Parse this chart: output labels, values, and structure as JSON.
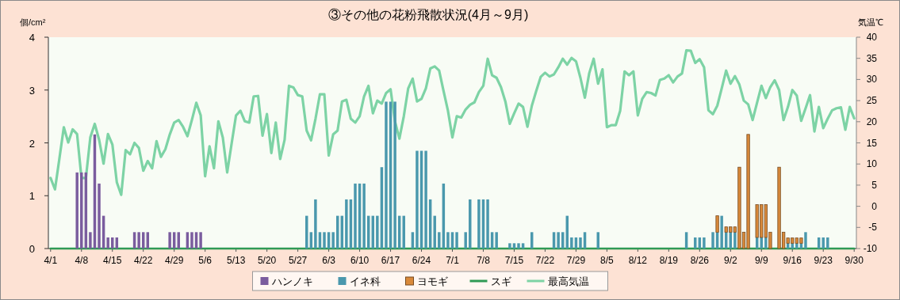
{
  "chart_data": {
    "type": "bar",
    "title": "③その他の花粉飛散状況(4月～9月)",
    "ylabel": "個/cm²",
    "y2label": "気温℃",
    "categories": [
      "4/1",
      null,
      null,
      null,
      null,
      null,
      null,
      "4/8",
      null,
      null,
      null,
      null,
      null,
      null,
      "4/15",
      null,
      null,
      null,
      null,
      null,
      null,
      "4/22",
      null,
      null,
      null,
      null,
      null,
      null,
      "4/29",
      null,
      null,
      null,
      null,
      null,
      null,
      "5/6",
      null,
      null,
      null,
      null,
      null,
      null,
      "5/13",
      null,
      null,
      null,
      null,
      null,
      null,
      "5/20",
      null,
      null,
      null,
      null,
      null,
      null,
      "5/27",
      null,
      null,
      null,
      null,
      null,
      null,
      "6/3",
      null,
      null,
      null,
      null,
      null,
      null,
      "6/10",
      null,
      null,
      null,
      null,
      null,
      null,
      "6/17",
      null,
      null,
      null,
      null,
      null,
      null,
      "6/24",
      null,
      null,
      null,
      null,
      null,
      null,
      "7/1",
      null,
      null,
      null,
      null,
      null,
      null,
      "7/8",
      null,
      null,
      null,
      null,
      null,
      null,
      "7/15",
      null,
      null,
      null,
      null,
      null,
      null,
      "7/22",
      null,
      null,
      null,
      null,
      null,
      null,
      "7/29",
      null,
      null,
      null,
      null,
      null,
      null,
      "8/5",
      null,
      null,
      null,
      null,
      null,
      null,
      "8/12",
      null,
      null,
      null,
      null,
      null,
      null,
      "8/19",
      null,
      null,
      null,
      null,
      null,
      null,
      "8/26",
      null,
      null,
      null,
      null,
      null,
      null,
      "9/2",
      null,
      null,
      null,
      null,
      null,
      null,
      "9/9",
      null,
      null,
      null,
      null,
      null,
      null,
      "9/16",
      null,
      null,
      null,
      null,
      null,
      null,
      "9/23",
      null,
      null,
      null,
      null,
      null,
      null,
      "9/30"
    ],
    "stacked": true,
    "legend": "bottom",
    "ylim": [
      0,
      4
    ],
    "yticks": [
      0,
      1,
      2,
      3,
      4
    ],
    "y2lim": [
      -10,
      40
    ],
    "y2ticks": [
      -10,
      -5,
      0,
      5,
      10,
      15,
      20,
      25,
      30,
      35,
      40
    ],
    "series": [
      {
        "name": "ハンノキ",
        "color": "#7a5c9e",
        "values": [
          0,
          0,
          0,
          0,
          0,
          0,
          1.44,
          1.44,
          1.44,
          0.31,
          2.16,
          1.23,
          0.62,
          0.21,
          0.21,
          0.21,
          0,
          0,
          0,
          0.31,
          0.31,
          0.31,
          0.31,
          0,
          0,
          0,
          0,
          0.31,
          0.31,
          0.31,
          0,
          0.31,
          0.31,
          0.31,
          0.31,
          0,
          0,
          0,
          0,
          0,
          0,
          0,
          0,
          0,
          0,
          0,
          0,
          0,
          0,
          0,
          0,
          0,
          0,
          0,
          0,
          0,
          0,
          0,
          0,
          0,
          0,
          0,
          0,
          0,
          0,
          0,
          0,
          0,
          0,
          0,
          0,
          0,
          0,
          0,
          0,
          0,
          0,
          0,
          0,
          0,
          0,
          0,
          0,
          0,
          0,
          0,
          0,
          0,
          0,
          0,
          0,
          0,
          0,
          0,
          0,
          0,
          0,
          0,
          0,
          0,
          0,
          0,
          0,
          0,
          0,
          0,
          0,
          0,
          0,
          0,
          0,
          0,
          0,
          0,
          0,
          0,
          0,
          0,
          0,
          0,
          0,
          0,
          0,
          0,
          0,
          0,
          0,
          0,
          0,
          0,
          0,
          0,
          0,
          0,
          0,
          0,
          0,
          0,
          0,
          0,
          0,
          0,
          0,
          0,
          0,
          0,
          0,
          0,
          0,
          0,
          0,
          0,
          0,
          0,
          0,
          0,
          0,
          0,
          0,
          0,
          0,
          0,
          0,
          0,
          0,
          0,
          0,
          0,
          0,
          0,
          0,
          0,
          0,
          0,
          0,
          0,
          0,
          0,
          0,
          0,
          0,
          0,
          0
        ]
      },
      {
        "name": "イネ科",
        "color": "#4a98ad",
        "values": [
          0,
          0,
          0,
          0,
          0,
          0,
          0,
          0,
          0,
          0,
          0,
          0,
          0,
          0,
          0,
          0,
          0,
          0,
          0,
          0,
          0,
          0,
          0,
          0,
          0,
          0,
          0,
          0,
          0,
          0,
          0,
          0,
          0,
          0,
          0,
          0,
          0,
          0,
          0,
          0,
          0,
          0,
          0,
          0,
          0,
          0,
          0,
          0,
          0,
          0,
          0,
          0,
          0,
          0,
          0,
          0,
          0,
          0,
          0.62,
          0.31,
          0.93,
          0.31,
          0.31,
          0.31,
          0.31,
          0.62,
          0.62,
          0.93,
          0.93,
          1.23,
          1.23,
          1.23,
          0.62,
          0.62,
          0.62,
          1.54,
          2.78,
          2.78,
          2.78,
          0.62,
          0.62,
          0,
          0.31,
          1.85,
          1.85,
          1.85,
          0.93,
          0.62,
          0.31,
          1.23,
          0.31,
          0.31,
          0.31,
          0,
          0.31,
          0.93,
          0,
          0.93,
          0.93,
          0.93,
          0.31,
          0.31,
          0,
          0,
          0.1,
          0.1,
          0.1,
          0.1,
          0,
          0.31,
          0,
          0,
          0,
          0,
          0.31,
          0.31,
          0.31,
          0.62,
          0.21,
          0.21,
          0.21,
          0.31,
          0,
          0,
          0.31,
          0,
          0,
          0,
          0,
          0,
          0,
          0,
          0,
          0,
          0,
          0,
          0,
          0,
          0,
          0,
          0,
          0,
          0,
          0,
          0.31,
          0,
          0.21,
          0.21,
          0.21,
          0,
          0.31,
          0.31,
          0.62,
          0.31,
          0.31,
          0.31,
          0,
          0,
          0,
          0,
          0.21,
          0.21,
          0.21,
          0,
          0,
          0,
          0,
          0.1,
          0.1,
          0.1,
          0.1,
          0.31,
          0,
          0,
          0.21,
          0.21,
          0.21,
          0,
          0,
          0,
          0,
          0,
          0
        ]
      },
      {
        "name": "ヨモギ",
        "color": "#d9893a",
        "values": [
          0,
          0,
          0,
          0,
          0,
          0,
          0,
          0,
          0,
          0,
          0,
          0,
          0,
          0,
          0,
          0,
          0,
          0,
          0,
          0,
          0,
          0,
          0,
          0,
          0,
          0,
          0,
          0,
          0,
          0,
          0,
          0,
          0,
          0,
          0,
          0,
          0,
          0,
          0,
          0,
          0,
          0,
          0,
          0,
          0,
          0,
          0,
          0,
          0,
          0,
          0,
          0,
          0,
          0,
          0,
          0,
          0,
          0,
          0,
          0,
          0,
          0,
          0,
          0,
          0,
          0,
          0,
          0,
          0,
          0,
          0,
          0,
          0,
          0,
          0,
          0,
          0,
          0,
          0,
          0,
          0,
          0,
          0,
          0,
          0,
          0,
          0,
          0,
          0,
          0,
          0,
          0,
          0,
          0,
          0,
          0,
          0,
          0,
          0,
          0,
          0,
          0,
          0,
          0,
          0,
          0,
          0,
          0,
          0,
          0,
          0,
          0,
          0,
          0,
          0,
          0,
          0,
          0,
          0,
          0,
          0,
          0,
          0,
          0,
          0,
          0,
          0,
          0,
          0,
          0,
          0,
          0,
          0,
          0,
          0,
          0,
          0,
          0,
          0,
          0,
          0,
          0,
          0,
          0,
          0,
          0,
          0,
          0,
          0,
          0,
          0,
          0.31,
          0,
          0.1,
          0.1,
          0.1,
          1.54,
          0.31,
          2.16,
          0,
          0.62,
          0.62,
          0.62,
          0.31,
          0,
          1.54,
          0.31,
          0.1,
          0.1,
          0.1,
          0.1,
          0,
          0,
          0,
          0,
          0,
          0,
          0,
          0,
          0,
          0,
          0,
          0
        ]
      },
      {
        "name": "スギ",
        "type": "line",
        "color": "#2f9a55",
        "values": [
          0,
          0,
          0,
          0,
          0,
          0,
          0,
          0,
          0,
          0,
          0,
          0,
          0,
          0,
          0,
          0,
          0,
          0,
          0,
          0,
          0,
          0,
          0,
          0,
          0,
          0,
          0,
          0,
          0,
          0,
          0,
          0,
          0,
          0,
          0,
          0,
          0,
          0,
          0,
          0,
          0,
          0,
          0,
          0,
          0,
          0,
          0,
          0,
          0,
          0,
          0,
          0,
          0,
          0,
          0,
          0,
          0,
          0,
          0,
          0,
          0,
          0,
          0,
          0,
          0,
          0,
          0,
          0,
          0,
          0,
          0,
          0,
          0,
          0,
          0,
          0,
          0,
          0,
          0,
          0,
          0,
          0,
          0,
          0,
          0,
          0,
          0,
          0,
          0,
          0,
          0,
          0,
          0,
          0,
          0,
          0,
          0,
          0,
          0,
          0,
          0,
          0,
          0,
          0,
          0,
          0,
          0,
          0,
          0,
          0,
          0,
          0,
          0,
          0,
          0,
          0,
          0,
          0,
          0,
          0,
          0,
          0,
          0,
          0,
          0,
          0,
          0,
          0,
          0,
          0,
          0,
          0,
          0,
          0,
          0,
          0,
          0,
          0,
          0,
          0,
          0,
          0,
          0,
          0,
          0,
          0,
          0,
          0,
          0,
          0,
          0,
          0,
          0,
          0,
          0,
          0,
          0,
          0,
          0,
          0,
          0,
          0,
          0,
          0,
          0,
          0,
          0,
          0,
          0,
          0,
          0,
          0,
          0,
          0,
          0,
          0,
          0,
          0,
          0,
          0,
          0,
          0,
          0
        ]
      },
      {
        "name": "最高気温",
        "type": "line",
        "axis": "y2",
        "color": "#7dd3a5",
        "values": [
          6.7,
          4.0,
          11.3,
          18.7,
          15.1,
          18.2,
          17.1,
          6.7,
          6.7,
          16.3,
          19.5,
          15.7,
          10.1,
          17.1,
          14.6,
          5.7,
          2.7,
          13.3,
          12.3,
          15.0,
          13.8,
          8.4,
          10.7,
          9.0,
          15.4,
          11.7,
          13.5,
          17.0,
          19.8,
          20.4,
          18.8,
          16.6,
          20.4,
          24.5,
          21.5,
          7.1,
          14.2,
          9.0,
          20.1,
          16.3,
          8.0,
          14.8,
          21.5,
          22.6,
          20.1,
          19.8,
          26.0,
          26.1,
          16.7,
          21.8,
          12.6,
          19.8,
          11.2,
          15.7,
          28.5,
          28.1,
          26.3,
          26.0,
          17.9,
          15.6,
          20.7,
          26.5,
          26.5,
          12.0,
          17.0,
          17.9,
          24.8,
          25.2,
          20.7,
          19.8,
          21.3,
          26.0,
          28.5,
          22.0,
          25.0,
          24.3,
          26.8,
          27.7,
          20.1,
          16.0,
          21.3,
          27.9,
          30.2,
          24.8,
          25.4,
          27.9,
          32.6,
          33.1,
          32.1,
          27.3,
          22.6,
          16.3,
          21.3,
          21.0,
          22.9,
          24.0,
          24.6,
          27.0,
          28.5,
          34.9,
          31.0,
          30.4,
          28.2,
          24.8,
          19.5,
          22.0,
          24.3,
          23.5,
          18.8,
          23.8,
          27.3,
          30.6,
          31.6,
          30.7,
          31.2,
          32.9,
          34.9,
          33.5,
          35.1,
          34.3,
          30.4,
          25.7,
          31.5,
          34.9,
          29.0,
          32.4,
          18.7,
          19.2,
          19.2,
          22.6,
          31.9,
          31.0,
          31.9,
          21.5,
          25.4,
          27.0,
          26.8,
          26.2,
          29.9,
          30.2,
          31.0,
          29.3,
          30.7,
          31.4,
          36.9,
          36.8,
          33.9,
          34.8,
          32.9,
          22.7,
          21.8,
          23.8,
          27.9,
          32.1,
          29.0,
          30.8,
          28.8,
          25.0,
          24.1,
          20.4,
          24.5,
          28.5,
          25.6,
          28.2,
          29.8,
          27.5,
          20.4,
          23.5,
          27.5,
          26.2,
          20.2,
          23.2,
          26.3,
          17.7,
          23.5,
          18.5,
          20.7,
          22.7,
          23.2,
          23.4,
          18.1,
          23.5,
          20.8
        ]
      }
    ]
  }
}
